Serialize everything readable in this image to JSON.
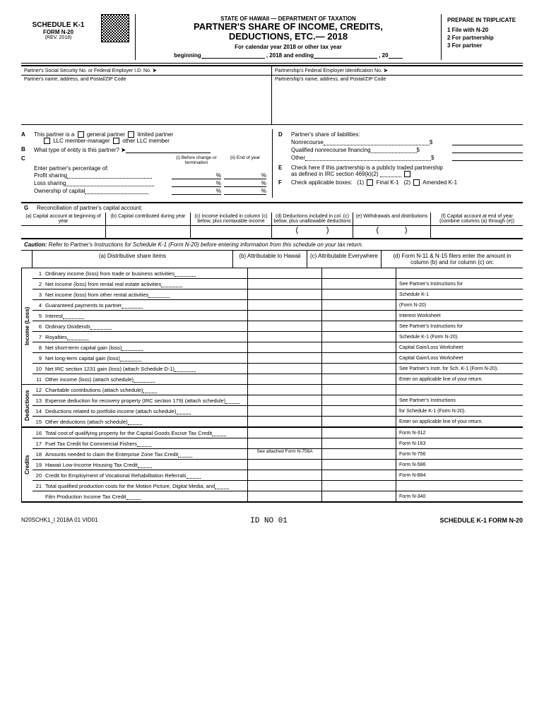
{
  "header": {
    "schedule": "SCHEDULE K-1",
    "form": "FORM N-20",
    "rev": "(REV. 2018)",
    "state": "STATE OF HAWAII — DEPARTMENT OF TAXATION",
    "title1": "PARTNER'S SHARE OF INCOME, CREDITS,",
    "title2": "DEDUCTIONS, ETC.— 2018",
    "calendar": "For calendar year 2018 or other tax year",
    "beginning": "beginning",
    "ending": ", 2018 and ending",
    "yr": ", 20",
    "prepare": "PREPARE IN TRIPLICATE",
    "prep1": "1   File with N-20",
    "prep2": "2   For partnership",
    "prep3": "3   For partner"
  },
  "partner_info": {
    "ssn_label": "Partner's Social Security No. or Federal Employer I.D. No.",
    "fein_label": "Partnership's Federal Employer Identification No.",
    "partner_addr": "Partner's name, address, and Postal/ZIP Code",
    "pship_addr": "Partnership's name, address, and Postal/ZIP Code"
  },
  "sectionA": {
    "text": "This partner is a",
    "opt1": "general partner",
    "opt2": "limited partner",
    "opt3": "LLC member-manager",
    "opt4": "other LLC member"
  },
  "sectionB": {
    "text": "What type of entity is this partner?"
  },
  "sectionC": {
    "text": "Enter partner's percentage of:",
    "head1": "(i) Before change or termination",
    "head2": "(ii) End of year",
    "r1": "Profit sharing",
    "r2": "Loss sharing",
    "r3": "Ownership of capital"
  },
  "sectionD": {
    "text": "Partner's share of liabilities:",
    "r1": "Nonrecourse",
    "r2": "Qualified nonrecourse financing",
    "r3": "Other"
  },
  "sectionE": {
    "text1": "Check here if this partnership is a publicly traded partnership",
    "text2": "as defined in IRC section 469(k)(2)"
  },
  "sectionF": {
    "text": "Check applicable boxes:",
    "opt1": "(1)",
    "opt1b": "Final K-1",
    "opt2": "(2)",
    "opt2b": "Amended K-1"
  },
  "sectionG": {
    "title": "Reconciliation of partner's capital account:",
    "ha": "(a) Capital account at beginning of year",
    "hb": "(b) Capital contributed during year",
    "hc": "(c) Income included in column (c) below, plus nontaxable income",
    "hd": "(d) Deductions included in col. (c) below, plus unallowable deductions",
    "he": "(e) Withdrawals and distributions",
    "hf": "(f) Capital account at end of year (combine columns (a) through (e))"
  },
  "caution": {
    "label": "Caution:",
    "text": "Refer to Partner's Instructions for Schedule K-1 (Form N-20) before entering information from this schedule on your tax return."
  },
  "dist_head": {
    "a": "(a) Distributive share items",
    "b": "(b) Attributable to Hawaii",
    "c": "(c) Attributable Everywhere",
    "d": "(d) Form N-11 & N-15 filers enter the amount in column (b) and /or column (c) on:"
  },
  "sections": {
    "income": "Income (Loss)",
    "deductions": "Deductions",
    "credits": "Credits"
  },
  "rows": [
    {
      "n": "1",
      "d": "Ordinary income (loss) from trade or business activities",
      "ref": ""
    },
    {
      "n": "2",
      "d": "Net income (loss) from rental real estate activities",
      "ref": "See Partner's Instructions for"
    },
    {
      "n": "3",
      "d": "Net income (loss) from other rental activities",
      "ref": "Schedule K-1"
    },
    {
      "n": "4",
      "d": "Guaranteed payments to partner",
      "ref": "(Form N-20)"
    },
    {
      "n": "5",
      "d": "Interest",
      "ref": "Interest Worksheet"
    },
    {
      "n": "6",
      "d": "Ordinary Dividends",
      "ref": "See Partner's Instructions for"
    },
    {
      "n": "7",
      "d": "Royalties",
      "ref": "Schedule K-1 (Form N-20)."
    },
    {
      "n": "8",
      "d": "Net short-term capital gain (loss)",
      "ref": "Capital Gain/Loss Worksheet"
    },
    {
      "n": "9",
      "d": "Net long-term capital gain (loss)",
      "ref": "Capital Gain/Loss Worksheet"
    },
    {
      "n": "10",
      "d": "Net IRC section 1231 gain (loss) (attach Schedule D-1)",
      "ref": "See Partner's Instr. for Sch. K-1 (Form N-20)."
    },
    {
      "n": "11",
      "d": "Other income (loss) (attach schedule)",
      "ref": "Enter on applicable line of your return."
    },
    {
      "n": "12",
      "d": "Charitable contributions (attach schedule)",
      "ref": ""
    },
    {
      "n": "13",
      "d": "Expense deduction for recovery property (IRC section 179) (attach schedule)",
      "ref": "See Partner's Instructions"
    },
    {
      "n": "14",
      "d": "Deductions related to portfolio income (attach schedule)",
      "ref": "for Schedule K-1 (Form N-20)."
    },
    {
      "n": "15",
      "d": "Other deductions (attach schedule)",
      "ref": "Enter on applicable line of your return."
    },
    {
      "n": "16",
      "d": "Total cost of qualifying property for the Capital Goods Excise Tax Credit",
      "ref": "Form N-312"
    },
    {
      "n": "17",
      "d": "Fuel Tax Credit for Commercial Fishers",
      "ref": "Form N-163"
    },
    {
      "n": "18",
      "d": "Amounts needed to claim the Enterprise Zone Tax Credit",
      "ref": "Form N-756",
      "b": "See attached Form N-756A"
    },
    {
      "n": "19",
      "d": "Hawaii Low-Income Housing Tax Credit",
      "ref": "Form N-586"
    },
    {
      "n": "20",
      "d": "Credit for Employment of Vocational Rehabilitation Referrals",
      "ref": "Form N-884"
    },
    {
      "n": "21",
      "d": "Total qualified production costs for the Motion Picture, Digital Media, and",
      "ref": ""
    },
    {
      "n": "",
      "d": "Film Production Income Tax Credit",
      "ref": "Form N-340"
    }
  ],
  "footer": {
    "left": "N20SCHK1_I 2018A 01 VID01",
    "mid": "ID NO 01",
    "right": "SCHEDULE K-1 FORM N-20"
  }
}
